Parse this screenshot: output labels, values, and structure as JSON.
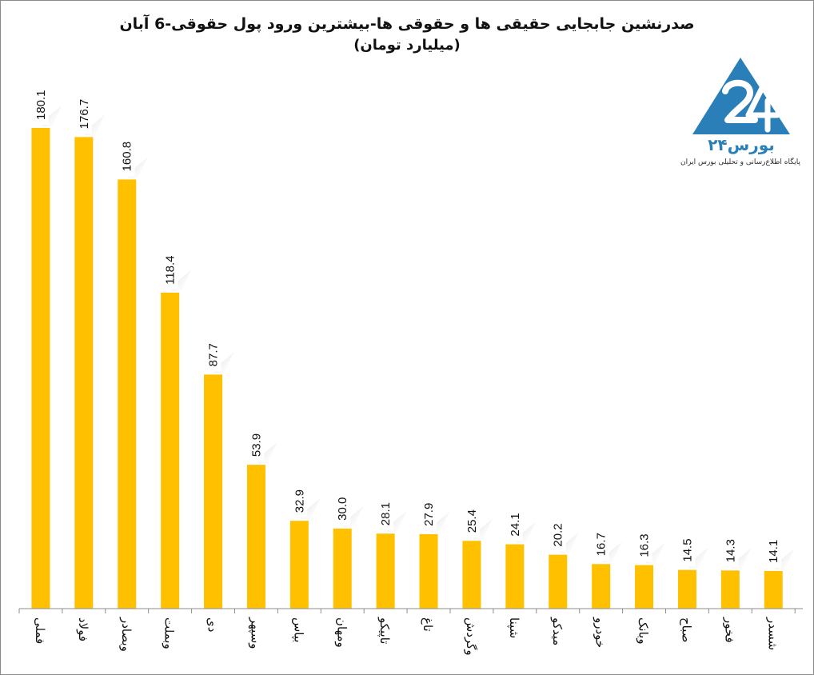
{
  "chart_data": {
    "type": "bar",
    "title": "صدرنشین جابجایی حقیقی ها و حقوقی ها-بیشترین ورود پول حقوقی-6 آبان",
    "subtitle": "(میلیارد تومان)",
    "categories": [
      "فملی",
      "فولاد",
      "وبصادر",
      "وبملت",
      "دی",
      "وسپهر",
      "بپاس",
      "ومهان",
      "تاپیکو",
      "تاغ",
      "وگردش",
      "شپنا",
      "میدکو",
      "خودرو",
      "وبانک",
      "صباح",
      "فخور",
      "شسدر"
    ],
    "values": [
      180.1,
      176.7,
      160.8,
      118.4,
      87.7,
      53.9,
      32.9,
      30.0,
      28.1,
      27.9,
      25.4,
      24.1,
      20.2,
      16.7,
      16.3,
      14.5,
      14.3,
      14.1
    ],
    "value_labels": [
      "180.1",
      "176.7",
      "160.8",
      "118.4",
      "87.7",
      "53.9",
      "32.9",
      "30.0",
      "28.1",
      "27.9",
      "25.4",
      "24.1",
      "20.2",
      "16.7",
      "16.3",
      "14.5",
      "14.3",
      "14.1"
    ],
    "ylim": [
      0,
      180.1
    ],
    "grid": false,
    "bar_color": "#FFC000",
    "xlabel": "",
    "ylabel": ""
  },
  "logo": {
    "brand": "بورس۲۴",
    "tagline": "پایگاه اطلاع‌رسانی و تحلیلی بورس ایران",
    "color": "#2A7FB8"
  }
}
